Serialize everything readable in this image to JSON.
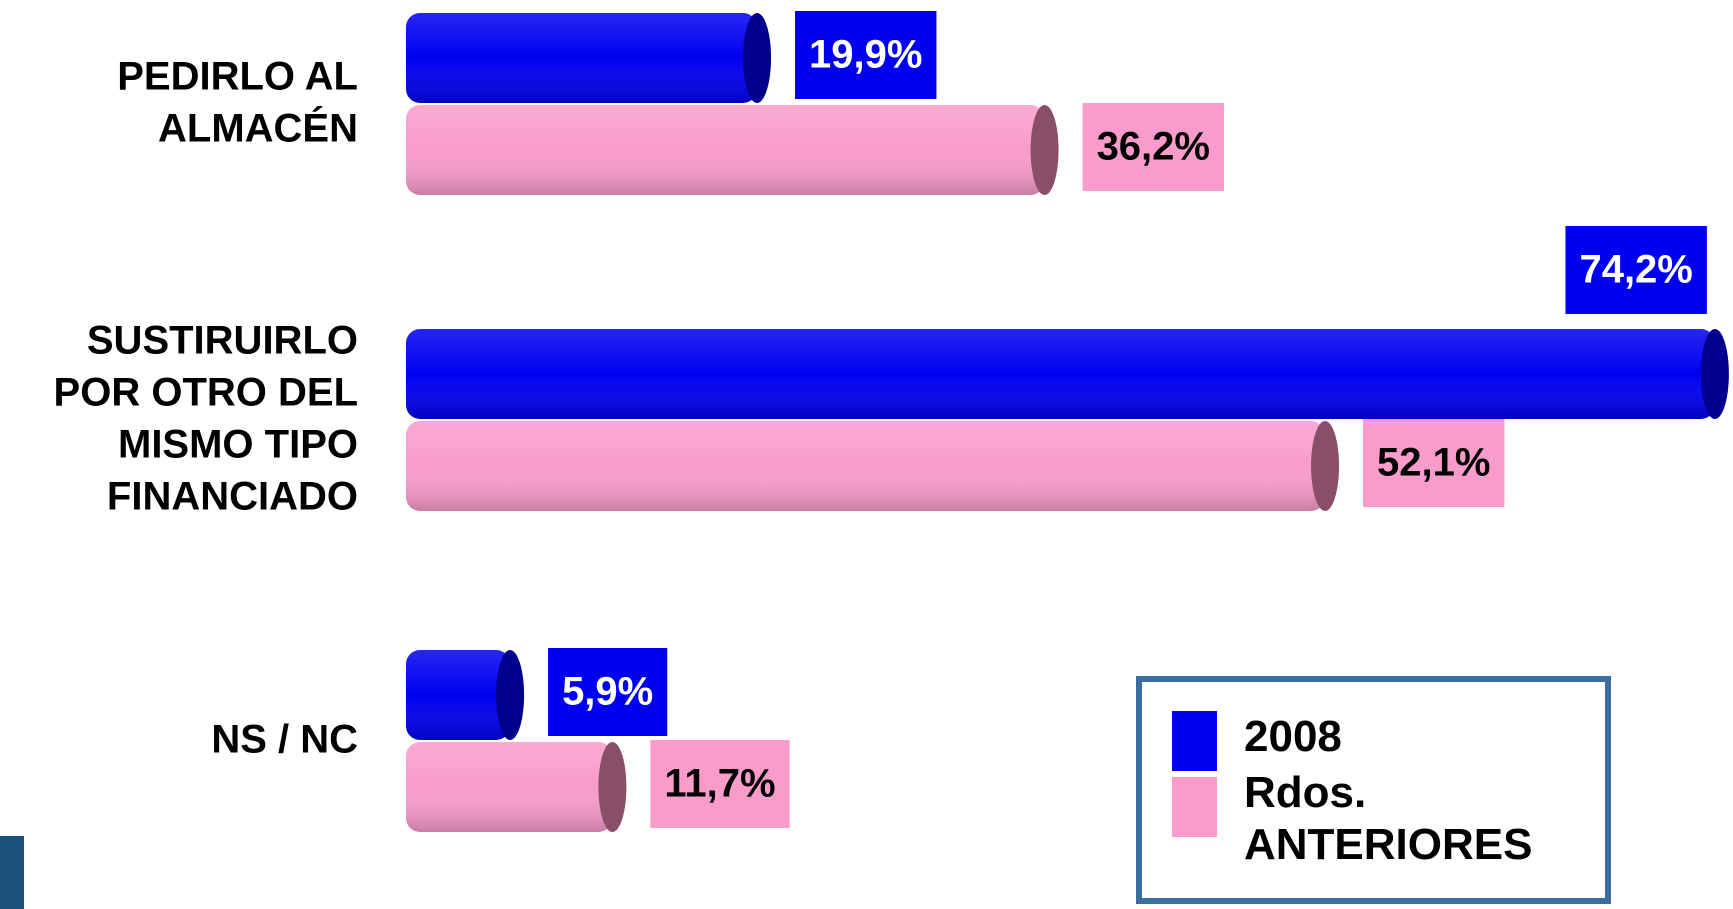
{
  "chart_data": {
    "type": "bar",
    "orientation": "horizontal",
    "categories": [
      [
        "PEDIRLO AL",
        "ALMACÉN"
      ],
      [
        "SUSTIRUIRLO",
        "POR OTRO DEL",
        "MISMO TIPO",
        "FINANCIADO"
      ],
      [
        "NS / NC"
      ]
    ],
    "xlim": [
      0,
      75
    ],
    "series": [
      {
        "name": "2008",
        "color": "#0000f0",
        "cap_color": "#00008c",
        "label_color": "#ffffff",
        "values": [
          19.9,
          74.2,
          5.9
        ],
        "value_labels": [
          "19,9%",
          "74,2%",
          "5,9%"
        ]
      },
      {
        "name": "Rdos. ANTERIORES",
        "color": "#f99ccb",
        "cap_color": "#8a4f68",
        "label_color": "#000000",
        "values": [
          36.2,
          52.1,
          11.7
        ],
        "value_labels": [
          "36,2%",
          "52,1%",
          "11,7%"
        ]
      }
    ],
    "legend": "bottom-right"
  }
}
